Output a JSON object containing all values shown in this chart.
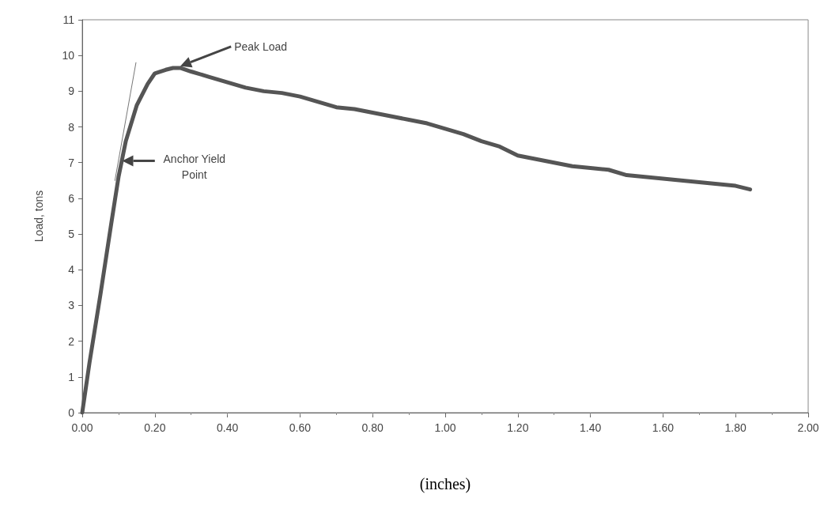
{
  "chart_data": {
    "type": "line",
    "xlabel": "(inches)",
    "ylabel": "Load, tons",
    "xlim": [
      0,
      2
    ],
    "xticks": [
      {
        "value": 0,
        "label": "0.00"
      },
      {
        "value": 0.2,
        "label": "0.20"
      },
      {
        "value": 0.4,
        "label": "0.40"
      },
      {
        "value": 0.6,
        "label": "0.60"
      },
      {
        "value": 0.8,
        "label": "0.80"
      },
      {
        "value": 1,
        "label": "1.00"
      },
      {
        "value": 1.2,
        "label": "1.20"
      },
      {
        "value": 1.4,
        "label": "1.40"
      },
      {
        "value": 1.6,
        "label": "1.60"
      },
      {
        "value": 1.8,
        "label": "1.80"
      },
      {
        "value": 2,
        "label": "2.00"
      }
    ],
    "ylim": [
      0,
      11
    ],
    "yticks": [
      0,
      1,
      2,
      3,
      4,
      5,
      6,
      7,
      8,
      9,
      10,
      11
    ],
    "grid": false,
    "marker": "none",
    "series": [
      {
        "color": "#555555",
        "x": [
          0,
          0.02,
          0.05,
          0.08,
          0.1,
          0.12,
          0.15,
          0.18,
          0.2,
          0.23,
          0.25,
          0.27,
          0.3,
          0.35,
          0.4,
          0.45,
          0.5,
          0.55,
          0.6,
          0.65,
          0.7,
          0.75,
          0.8,
          0.85,
          0.9,
          0.95,
          1.0,
          1.05,
          1.1,
          1.15,
          1.2,
          1.25,
          1.3,
          1.35,
          1.4,
          1.45,
          1.5,
          1.55,
          1.6,
          1.65,
          1.7,
          1.75,
          1.8,
          1.84
        ],
        "values": [
          0,
          1.4,
          3.3,
          5.3,
          6.6,
          7.6,
          8.6,
          9.2,
          9.5,
          9.6,
          9.65,
          9.65,
          9.55,
          9.4,
          9.25,
          9.1,
          9.0,
          8.95,
          8.85,
          8.7,
          8.55,
          8.5,
          8.4,
          8.3,
          8.2,
          8.1,
          7.95,
          7.8,
          7.6,
          7.45,
          7.2,
          7.1,
          7.0,
          6.9,
          6.85,
          6.8,
          6.65,
          6.6,
          6.55,
          6.5,
          6.45,
          6.4,
          6.35,
          6.25
        ]
      },
      {
        "color": "#777777",
        "x": [
          0.09,
          0.148
        ],
        "values": [
          6.5,
          9.8
        ]
      }
    ],
    "annotations": [
      "Peak Load",
      "Anchor Yield Point"
    ]
  }
}
